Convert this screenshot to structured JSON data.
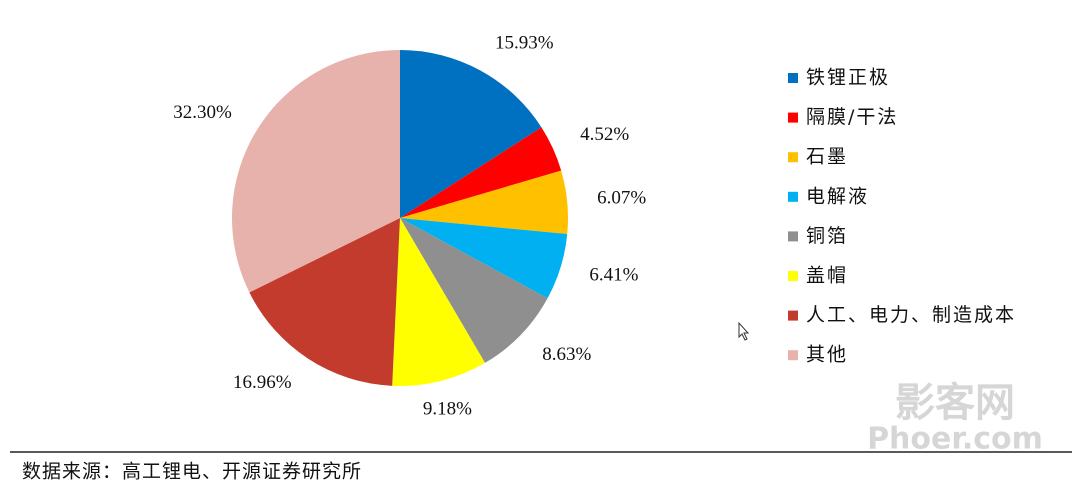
{
  "chart_data": {
    "type": "pie",
    "categories": [
      "铁锂正极",
      "隔膜/干法",
      "石墨",
      "电解液",
      "铜箔",
      "盖帽",
      "人工、电力、制造成本",
      "其他"
    ],
    "values": [
      15.93,
      4.52,
      6.07,
      6.41,
      8.63,
      9.18,
      16.96,
      32.3
    ],
    "value_labels": [
      "15.93%",
      "4.52%",
      "6.07%",
      "6.41%",
      "8.63%",
      "9.18%",
      "16.96%",
      "32.30%"
    ],
    "colors": [
      "#0070c0",
      "#ff0000",
      "#ffc000",
      "#00b0f0",
      "#8f8f8f",
      "#ffff00",
      "#c23b2c",
      "#e8b2ac"
    ],
    "legend": "right",
    "source": "数据来源：高工锂电、开源证券研究所",
    "watermark": [
      "影客网",
      "Phoer.com"
    ]
  }
}
